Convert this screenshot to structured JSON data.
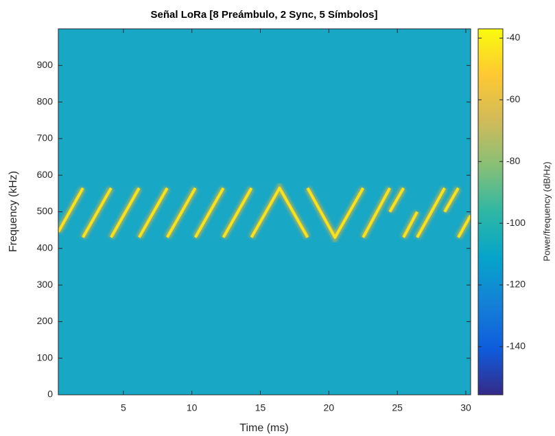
{
  "chart_data": {
    "type": "spectrogram",
    "title": "Señal LoRa [8 Preámbulo, 2 Sync, 5 Símbolos]",
    "xlabel": "Time (ms)",
    "ylabel": "Frequency (kHz)",
    "colorbar_label": "Power/frequency (dB/Hz)",
    "xlim": [
      0.25,
      30.35
    ],
    "xticks": [
      5,
      10,
      15,
      20,
      25,
      30
    ],
    "ylim": [
      0,
      1000
    ],
    "yticks": [
      0,
      100,
      200,
      300,
      400,
      500,
      600,
      700,
      800,
      900
    ],
    "clim": [
      -155.6,
      -37
    ],
    "cticks": [
      -140,
      -120,
      -100,
      -80,
      -60,
      -40
    ],
    "colormap": [
      "#352a87",
      "#0f5cdd",
      "#1481d6",
      "#06a4ca",
      "#2eb7a4",
      "#87bf77",
      "#d1bb59",
      "#fec832",
      "#f9fb0e"
    ],
    "background_color": "#19a7c6",
    "x": [
      0.25,
      2.05,
      null,
      2.05,
      4.1,
      null,
      4.1,
      6.15,
      null,
      6.15,
      8.2,
      null,
      8.2,
      10.25,
      null,
      10.25,
      12.3,
      null,
      12.3,
      14.35,
      null,
      14.35,
      16.4,
      18.45,
      null,
      18.45,
      20.45,
      22.5,
      null,
      22.5,
      24.45,
      null,
      24.45,
      25.45,
      null,
      25.45,
      26.45,
      null,
      26.45,
      28.45,
      null,
      28.45,
      29.45,
      null,
      29.45,
      30.35
    ],
    "series": [
      {
        "color": "#f7e21c",
        "values": [
          445,
          565,
          null,
          430,
          565,
          null,
          430,
          565,
          null,
          430,
          565,
          null,
          430,
          565,
          null,
          430,
          565,
          null,
          430,
          565,
          null,
          430,
          565,
          430,
          null,
          565,
          430,
          565,
          null,
          430,
          565,
          null,
          500,
          565,
          null,
          430,
          500,
          null,
          430,
          565,
          null,
          500,
          565,
          null,
          430,
          490
        ]
      }
    ]
  }
}
